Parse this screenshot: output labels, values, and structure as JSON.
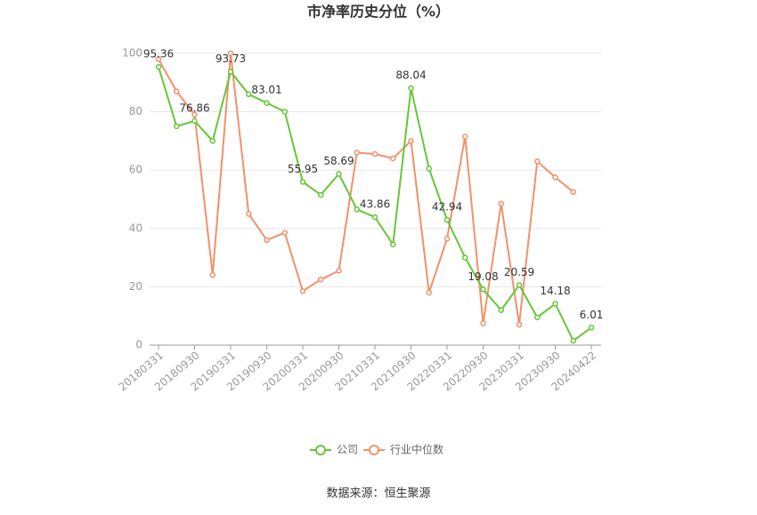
{
  "chart_data": {
    "type": "line",
    "title": "市净率历史分位（%）",
    "categories": [
      "20180331",
      null,
      "20180930",
      null,
      "20190331",
      null,
      "20190930",
      null,
      "20200331",
      null,
      "20200930",
      null,
      "20210331",
      null,
      "20210930",
      null,
      "20220331",
      null,
      "20220930",
      null,
      "20230331",
      null,
      "20230930",
      null,
      "20240422"
    ],
    "series": [
      {
        "name": "公司",
        "color": "#66c637",
        "values": [
          95.36,
          75,
          76.86,
          70,
          93.73,
          86,
          83.01,
          80,
          55.95,
          51.5,
          58.69,
          46.5,
          43.86,
          34.5,
          88.04,
          60.5,
          42.94,
          30,
          19.08,
          12,
          20.59,
          9.5,
          14.18,
          1.5,
          6.01
        ],
        "value_labels": [
          "95.36",
          null,
          "76.86",
          null,
          "93.73",
          null,
          "83.01",
          null,
          "55.95",
          null,
          "58.69",
          null,
          "43.86",
          null,
          "88.04",
          null,
          "42.94",
          null,
          "19.08",
          null,
          "20.59",
          null,
          "14.18",
          null,
          "6.01"
        ]
      },
      {
        "name": "行业中位数",
        "color": "#f0916b",
        "values": [
          98,
          87,
          79,
          24,
          100,
          45,
          36,
          38.5,
          18.5,
          22.5,
          25.5,
          66,
          65.5,
          64,
          70,
          18,
          36.5,
          71.5,
          7.5,
          48.5,
          7,
          63,
          57.5,
          52.5,
          null
        ]
      }
    ],
    "ylim": [
      0,
      100
    ],
    "yticks": [
      0,
      20,
      40,
      60,
      80,
      100
    ],
    "grid": true,
    "source": "数据来源：恒生聚源"
  }
}
